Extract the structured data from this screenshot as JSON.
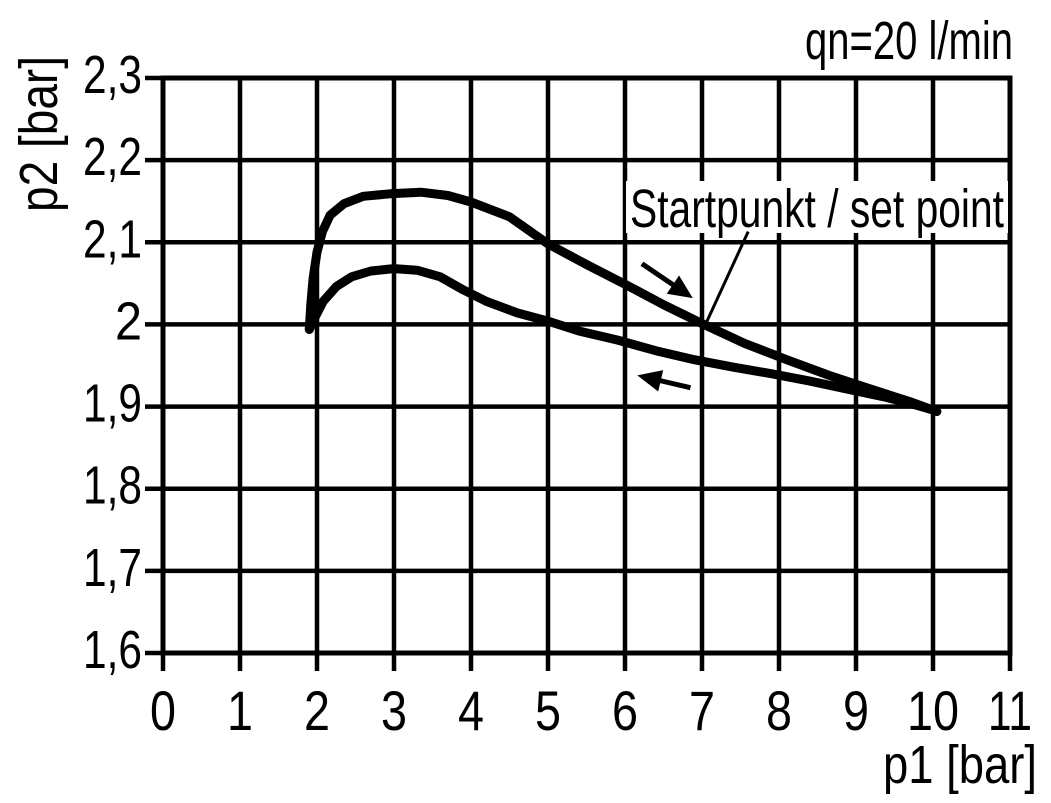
{
  "colors": {
    "ink": "#000000",
    "background": "#ffffff"
  },
  "chart_data": {
    "type": "line",
    "title": "qn=20 l/min",
    "xlabel": "p1 [bar]",
    "ylabel": "p2 [bar]",
    "xlim": [
      0,
      11
    ],
    "ylim": [
      1.6,
      2.3
    ],
    "grid": true,
    "x_tick_values": [
      0,
      1,
      2,
      3,
      4,
      5,
      6,
      7,
      8,
      9,
      10,
      11
    ],
    "x_tick_labels": [
      "0",
      "1",
      "2",
      "3",
      "4",
      "5",
      "6",
      "7",
      "8",
      "9",
      "10",
      "11"
    ],
    "y_tick_values": [
      2.3,
      2.2,
      2.1,
      2.0,
      1.9,
      1.8,
      1.7,
      1.6
    ],
    "y_tick_labels": [
      "2,3",
      "2,2",
      "2,1",
      "2",
      "1,9",
      "1,8",
      "1,7",
      "1,6"
    ],
    "series": [
      {
        "name": "upper_branch",
        "points": [
          [
            1.9,
            1.994
          ],
          [
            1.92,
            2.024
          ],
          [
            1.95,
            2.056
          ],
          [
            2.0,
            2.088
          ],
          [
            2.07,
            2.113
          ],
          [
            2.17,
            2.133
          ],
          [
            2.35,
            2.147
          ],
          [
            2.6,
            2.156
          ],
          [
            2.95,
            2.159
          ],
          [
            3.35,
            2.161
          ],
          [
            3.7,
            2.157
          ],
          [
            4.0,
            2.149
          ],
          [
            4.5,
            2.131
          ],
          [
            5.0,
            2.098
          ],
          [
            5.5,
            2.073
          ],
          [
            6.0,
            2.049
          ],
          [
            6.5,
            2.024
          ],
          [
            7.0,
            2.001
          ],
          [
            7.55,
            1.977
          ],
          [
            8.1,
            1.957
          ],
          [
            8.65,
            1.938
          ],
          [
            9.2,
            1.921
          ],
          [
            9.7,
            1.906
          ],
          [
            10.05,
            1.894
          ]
        ]
      },
      {
        "name": "lower_branch",
        "points": [
          [
            1.9,
            1.994
          ],
          [
            1.97,
            2.008
          ],
          [
            2.08,
            2.028
          ],
          [
            2.25,
            2.046
          ],
          [
            2.45,
            2.058
          ],
          [
            2.7,
            2.065
          ],
          [
            3.0,
            2.068
          ],
          [
            3.3,
            2.066
          ],
          [
            3.6,
            2.058
          ],
          [
            3.9,
            2.042
          ],
          [
            4.2,
            2.028
          ],
          [
            4.6,
            2.014
          ],
          [
            5.0,
            2.004
          ],
          [
            5.4,
            1.992
          ],
          [
            5.9,
            1.981
          ],
          [
            6.4,
            1.968
          ],
          [
            6.9,
            1.957
          ],
          [
            7.4,
            1.948
          ],
          [
            7.9,
            1.94
          ],
          [
            8.4,
            1.931
          ],
          [
            8.9,
            1.921
          ],
          [
            9.4,
            1.911
          ],
          [
            9.7,
            1.904
          ],
          [
            10.03,
            1.895
          ]
        ]
      }
    ],
    "set_point": {
      "label": "Startpunkt / set point",
      "point": [
        7.0,
        2.0
      ],
      "callout_from": [
        7.6,
        2.113
      ],
      "callout_to": [
        7.06,
        2.003
      ]
    },
    "arrows": [
      {
        "name": "flow-direction-arrow-right",
        "tail": [
          6.22,
          2.074
        ],
        "head": [
          6.88,
          2.032
        ]
      },
      {
        "name": "flow-direction-arrow-left",
        "tail": [
          6.85,
          1.923
        ],
        "head": [
          6.16,
          1.938
        ]
      }
    ]
  }
}
